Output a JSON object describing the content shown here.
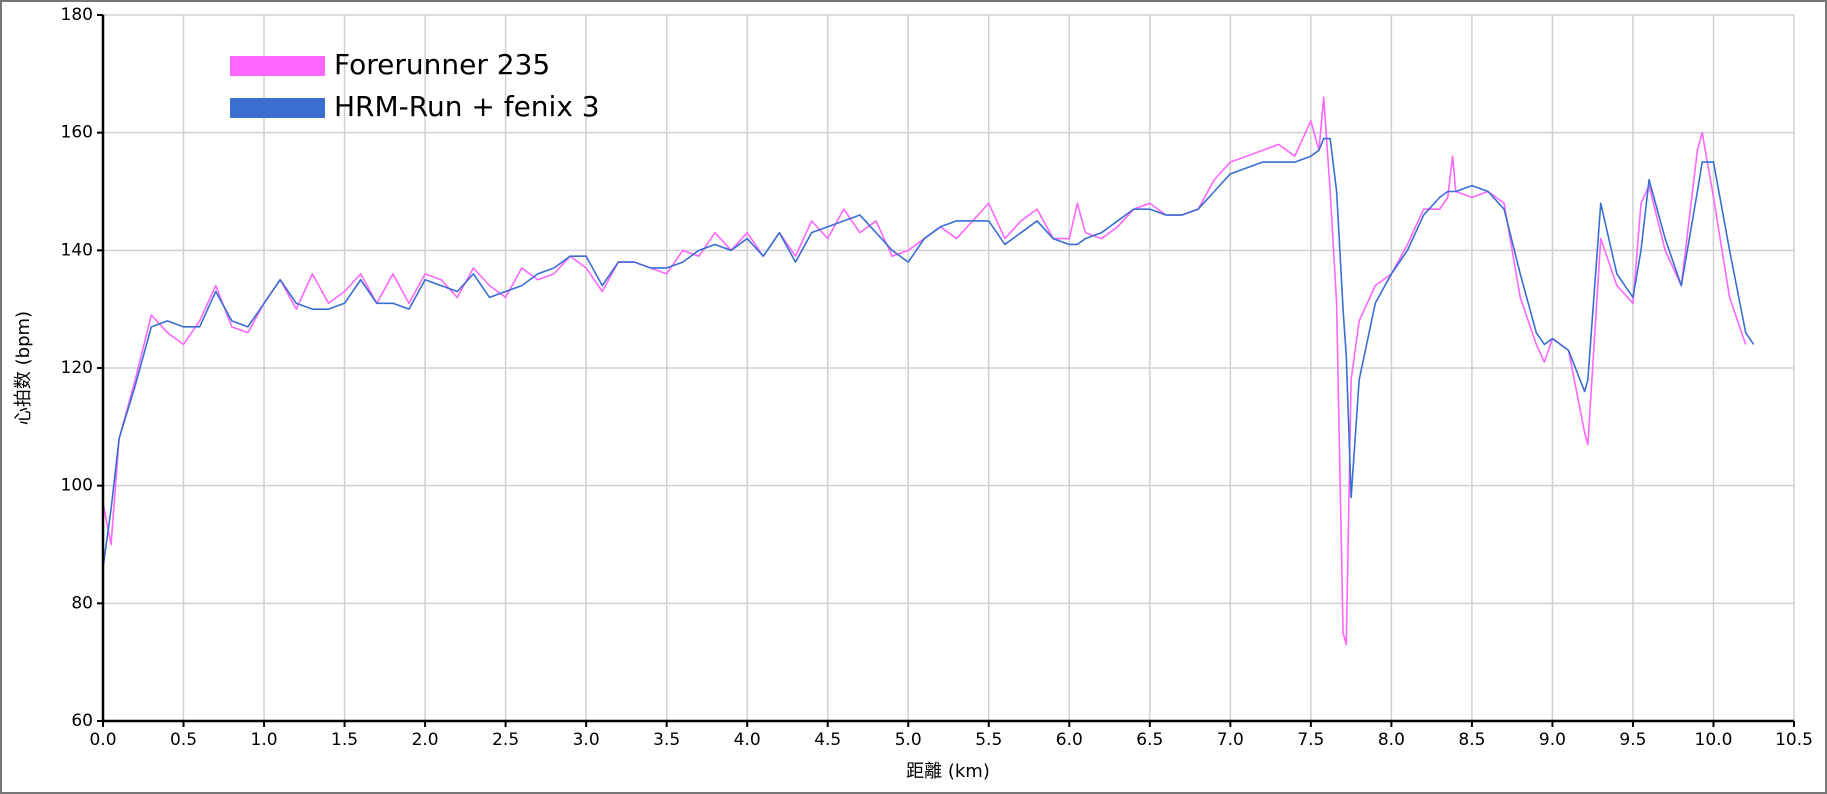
{
  "chart_data": {
    "type": "line",
    "x_label": "距離 (km)",
    "y_label": "心拍数 (bpm)",
    "x": [
      0,
      0.05,
      0.1,
      0.2,
      0.3,
      0.4,
      0.5,
      0.6,
      0.7,
      0.8,
      0.9,
      1.0,
      1.1,
      1.2,
      1.3,
      1.4,
      1.5,
      1.6,
      1.7,
      1.8,
      1.9,
      2.0,
      2.1,
      2.2,
      2.3,
      2.4,
      2.5,
      2.6,
      2.7,
      2.8,
      2.9,
      3.0,
      3.1,
      3.2,
      3.3,
      3.4,
      3.5,
      3.6,
      3.7,
      3.8,
      3.9,
      4.0,
      4.1,
      4.2,
      4.3,
      4.4,
      4.5,
      4.6,
      4.7,
      4.8,
      4.9,
      5.0,
      5.1,
      5.2,
      5.3,
      5.4,
      5.5,
      5.6,
      5.7,
      5.8,
      5.9,
      6.0,
      6.05,
      6.1,
      6.2,
      6.3,
      6.4,
      6.5,
      6.6,
      6.7,
      6.8,
      6.9,
      7.0,
      7.1,
      7.2,
      7.3,
      7.4,
      7.5,
      7.55,
      7.58,
      7.62,
      7.66,
      7.7,
      7.72,
      7.75,
      7.8,
      7.9,
      8.0,
      8.1,
      8.2,
      8.3,
      8.35,
      8.38,
      8.4,
      8.5,
      8.6,
      8.7,
      8.8,
      8.9,
      8.95,
      9.0,
      9.1,
      9.2,
      9.22,
      9.3,
      9.4,
      9.5,
      9.55,
      9.6,
      9.7,
      9.8,
      9.9,
      9.93,
      10.0,
      10.1,
      10.2,
      10.25
    ],
    "series": [
      {
        "name": "Forerunner 235",
        "color": "#ff66ff",
        "values": [
          97,
          90,
          108,
          118,
          129,
          126,
          124,
          128,
          134,
          127,
          126,
          131,
          135,
          130,
          136,
          131,
          133,
          136,
          131,
          136,
          131,
          136,
          135,
          132,
          137,
          134,
          132,
          137,
          135,
          136,
          139,
          137,
          133,
          138,
          138,
          137,
          136,
          140,
          139,
          143,
          140,
          143,
          139,
          143,
          139,
          145,
          142,
          147,
          143,
          145,
          139,
          140,
          142,
          144,
          142,
          145,
          148,
          142,
          145,
          147,
          142,
          142,
          148,
          143,
          142,
          144,
          147,
          148,
          146,
          146,
          147,
          152,
          155,
          156,
          157,
          158,
          156,
          162,
          157,
          166,
          150,
          131,
          75,
          73,
          118,
          128,
          134,
          136,
          141,
          147,
          147,
          149,
          156,
          150,
          149,
          150,
          148,
          132,
          124,
          121,
          125,
          123,
          109,
          107,
          142,
          134,
          131,
          148,
          151,
          140,
          134,
          157,
          160,
          149,
          132,
          124,
          null
        ]
      },
      {
        "name": "HRM-Run + fenix 3",
        "color": "#3a6fd1",
        "values": [
          86,
          96,
          108,
          117,
          127,
          128,
          127,
          127,
          133,
          128,
          127,
          131,
          135,
          131,
          130,
          130,
          131,
          135,
          131,
          131,
          130,
          135,
          134,
          133,
          136,
          132,
          133,
          134,
          136,
          137,
          139,
          139,
          134,
          138,
          138,
          137,
          137,
          138,
          140,
          141,
          140,
          142,
          139,
          143,
          138,
          143,
          144,
          145,
          146,
          143,
          140,
          138,
          142,
          144,
          145,
          145,
          145,
          141,
          143,
          145,
          142,
          141,
          141,
          142,
          143,
          145,
          147,
          147,
          146,
          146,
          147,
          150,
          153,
          154,
          155,
          155,
          155,
          156,
          157,
          159,
          159,
          150,
          130,
          122,
          98,
          118,
          131,
          136,
          140,
          146,
          149,
          150,
          150,
          150,
          151,
          150,
          147,
          136,
          126,
          124,
          125,
          123,
          116,
          118,
          148,
          136,
          132,
          140,
          152,
          142,
          134,
          150,
          155,
          155,
          140,
          126,
          124
        ]
      }
    ],
    "xlim": [
      0,
      10.5
    ],
    "xticks": [
      {
        "value": 0,
        "label": "0.0"
      },
      0.5,
      {
        "value": 1,
        "label": "1.0"
      },
      1.5,
      {
        "value": 2,
        "label": "2.0"
      },
      2.5,
      {
        "value": 3,
        "label": "3.0"
      },
      3.5,
      {
        "value": 4,
        "label": "4.0"
      },
      4.5,
      {
        "value": 5,
        "label": "5.0"
      },
      5.5,
      {
        "value": 6,
        "label": "6.0"
      },
      6.5,
      {
        "value": 7,
        "label": "7.0"
      },
      7.5,
      {
        "value": 8,
        "label": "8.0"
      },
      8.5,
      {
        "value": 9,
        "label": "9.0"
      },
      9.5,
      {
        "value": 10,
        "label": "10.0"
      },
      10.5
    ],
    "ylim": [
      60,
      180
    ],
    "yticks": [
      60,
      80,
      100,
      120,
      140,
      160,
      180
    ],
    "grid": true
  }
}
